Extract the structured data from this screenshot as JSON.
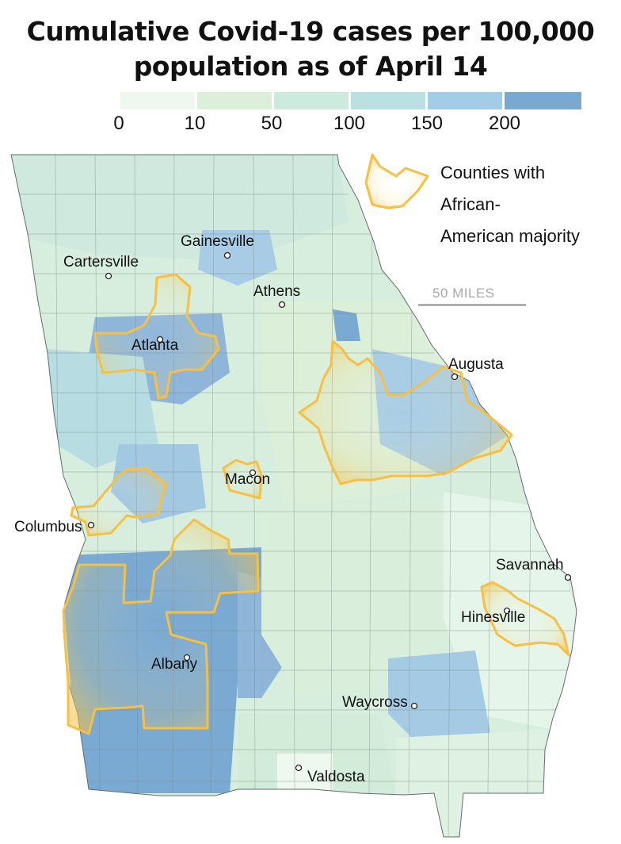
{
  "title": {
    "line1": "Cumulative Covid-19 cases per 100,000",
    "line2": "population as of April 14"
  },
  "legend": {
    "ticks": [
      "0",
      "10",
      "50",
      "100",
      "150",
      "200"
    ],
    "bins": [
      {
        "from": 0,
        "to": 10,
        "color": "#eef8ee"
      },
      {
        "from": 10,
        "to": 50,
        "color": "#dcefd9"
      },
      {
        "from": 50,
        "to": 100,
        "color": "#cdeadf"
      },
      {
        "from": 100,
        "to": 150,
        "color": "#b9e1e1"
      },
      {
        "from": 150,
        "to": 200,
        "color": "#a3cde6"
      },
      {
        "from": 200,
        "to": null,
        "color": "#79a9d1"
      }
    ]
  },
  "majority_legend": {
    "line1": "Counties with",
    "line2": "African-",
    "line3": "American majority",
    "outline_color": "#f5c045"
  },
  "scale": {
    "label": "50 MILES"
  },
  "cities": [
    {
      "id": "gainesville",
      "name": "Gainesville"
    },
    {
      "id": "cartersville",
      "name": "Cartersville"
    },
    {
      "id": "athens",
      "name": "Athens"
    },
    {
      "id": "atlanta",
      "name": "Atlanta"
    },
    {
      "id": "augusta",
      "name": "Augusta"
    },
    {
      "id": "macon",
      "name": "Macon"
    },
    {
      "id": "columbus",
      "name": "Columbus"
    },
    {
      "id": "savannah",
      "name": "Savannah"
    },
    {
      "id": "hinesville",
      "name": "Hinesville"
    },
    {
      "id": "albany",
      "name": "Albany"
    },
    {
      "id": "waycross",
      "name": "Waycross"
    },
    {
      "id": "valdosta",
      "name": "Valdosta"
    }
  ]
}
